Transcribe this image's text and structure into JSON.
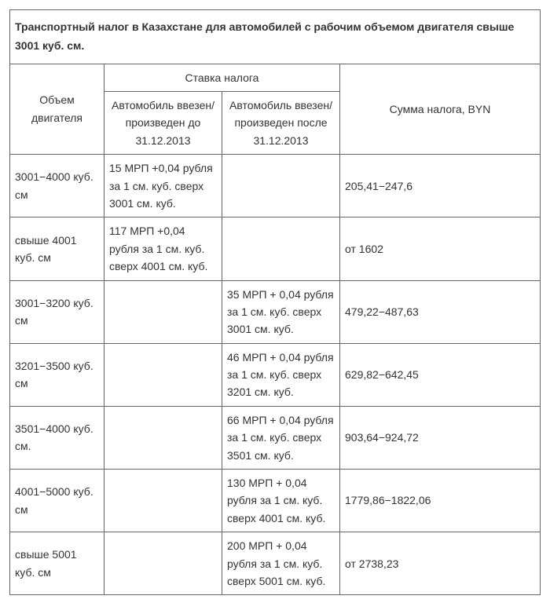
{
  "title": "Транспортный налог в Казахстане для автомобилей с рабочим объемом двигателя свыше 3001 куб. см.",
  "headers": {
    "col_volume": "Объем двигателя",
    "col_rate": "Ставка налога",
    "col_sum": "Сумма налога, BYN",
    "sub_rate_before": "Автомобиль ввезен/произведен до 31.12.2013",
    "sub_rate_after": "Автомобиль ввезен/произведен после 31.12.2013"
  },
  "rows": [
    {
      "volume": "3001−4000 куб. см",
      "rate_before": "15 МРП +0,04 рубля за 1 см. куб. сверх 3001 см. куб.",
      "rate_after": "",
      "sum": "205,41−247,6"
    },
    {
      "volume": "свыше 4001 куб. см",
      "rate_before": "117 МРП +0,04 рубля за 1 см. куб. сверх 4001 см. куб.",
      "rate_after": "",
      "sum": "от 1602"
    },
    {
      "volume": "3001−3200 куб. см",
      "rate_before": "",
      "rate_after": "35 МРП + 0,04 рубля за 1 см. куб. сверх 3001 см. куб.",
      "sum": "479,22−487,63"
    },
    {
      "volume": "3201−3500 куб. см",
      "rate_before": "",
      "rate_after": "46 МРП + 0,04 рубля за 1 см. куб. сверх 3201 см. куб.",
      "sum": "629,82−642,45"
    },
    {
      "volume": "3501−4000 куб. см.",
      "rate_before": "",
      "rate_after": "66 МРП + 0,04 рубля за 1 см. куб. сверх 3501 см. куб.",
      "sum": "903,64−924,72"
    },
    {
      "volume": "4001−5000 куб. см",
      "rate_before": "",
      "rate_after": "130 МРП + 0,04 рубля за 1 см. куб. сверх 4001 см. куб.",
      "sum": "1779,86−1822,06"
    },
    {
      "volume": "свыше 5001 куб. см",
      "rate_before": "",
      "rate_after": "200 МРП + 0,04 рубля за 1 см. куб. сверх 5001 см. куб.",
      "sum": "от 2738,23"
    }
  ]
}
